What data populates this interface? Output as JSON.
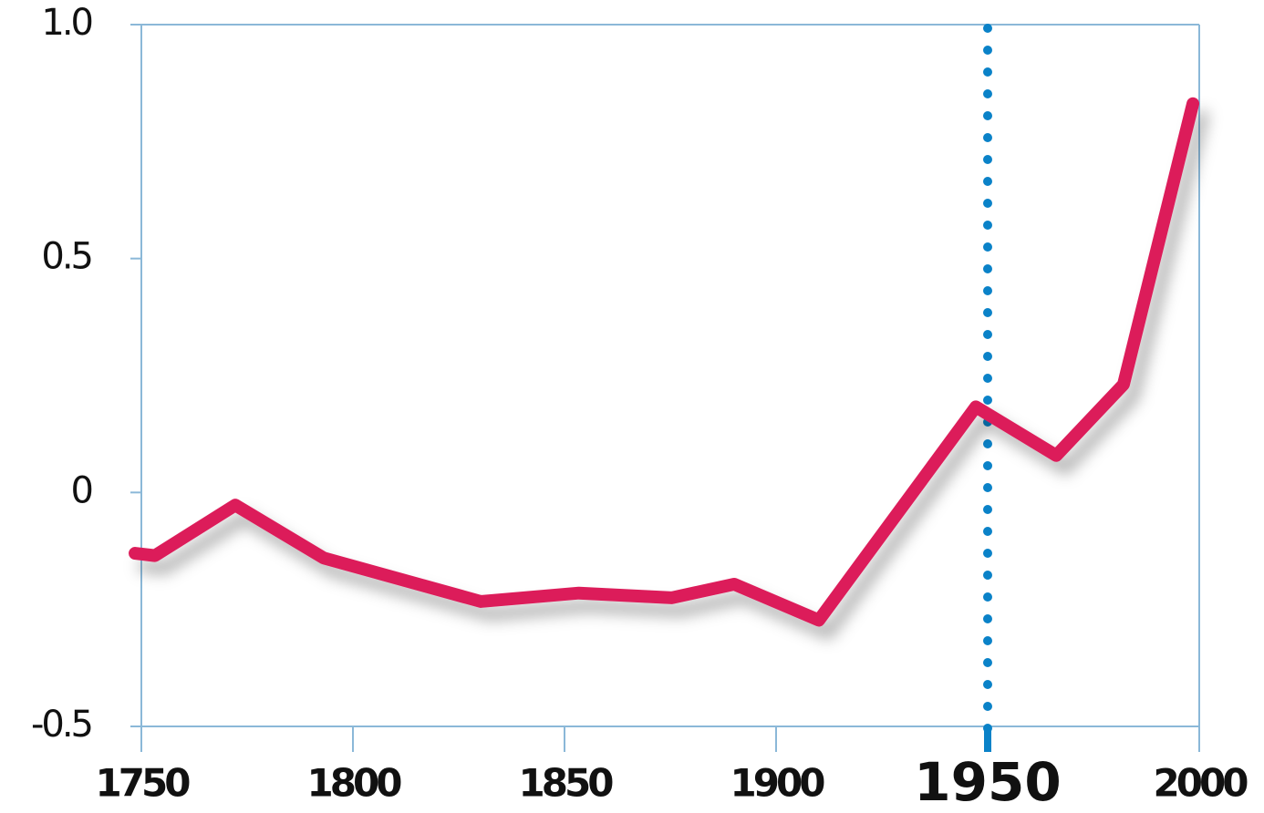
{
  "chart_data": {
    "type": "line",
    "x": [
      1748.5,
      1753.2,
      1772.2,
      1793.1,
      1830.2,
      1853.4,
      1875.4,
      1890.1,
      1910.1,
      1947.2,
      1966.2,
      1982.1,
      1998.5
    ],
    "series": [
      {
        "color": "#dc1e5a",
        "values": [
          -0.13,
          -0.135,
          -0.027,
          -0.14,
          -0.233,
          -0.215,
          -0.225,
          -0.196,
          -0.273,
          0.183,
          0.079,
          0.231,
          0.831
        ]
      }
    ],
    "xlim": [
      1750,
      2000
    ],
    "xticks": [
      1750,
      1800,
      1850,
      1900,
      1950,
      2000
    ],
    "ylim": [
      -0.5,
      1
    ],
    "yticks": [
      -0.5,
      0,
      0.5,
      {
        "value": 1,
        "label": "1.0"
      }
    ],
    "highlight": {
      "x": 1950,
      "color": "#0a82c8"
    }
  }
}
